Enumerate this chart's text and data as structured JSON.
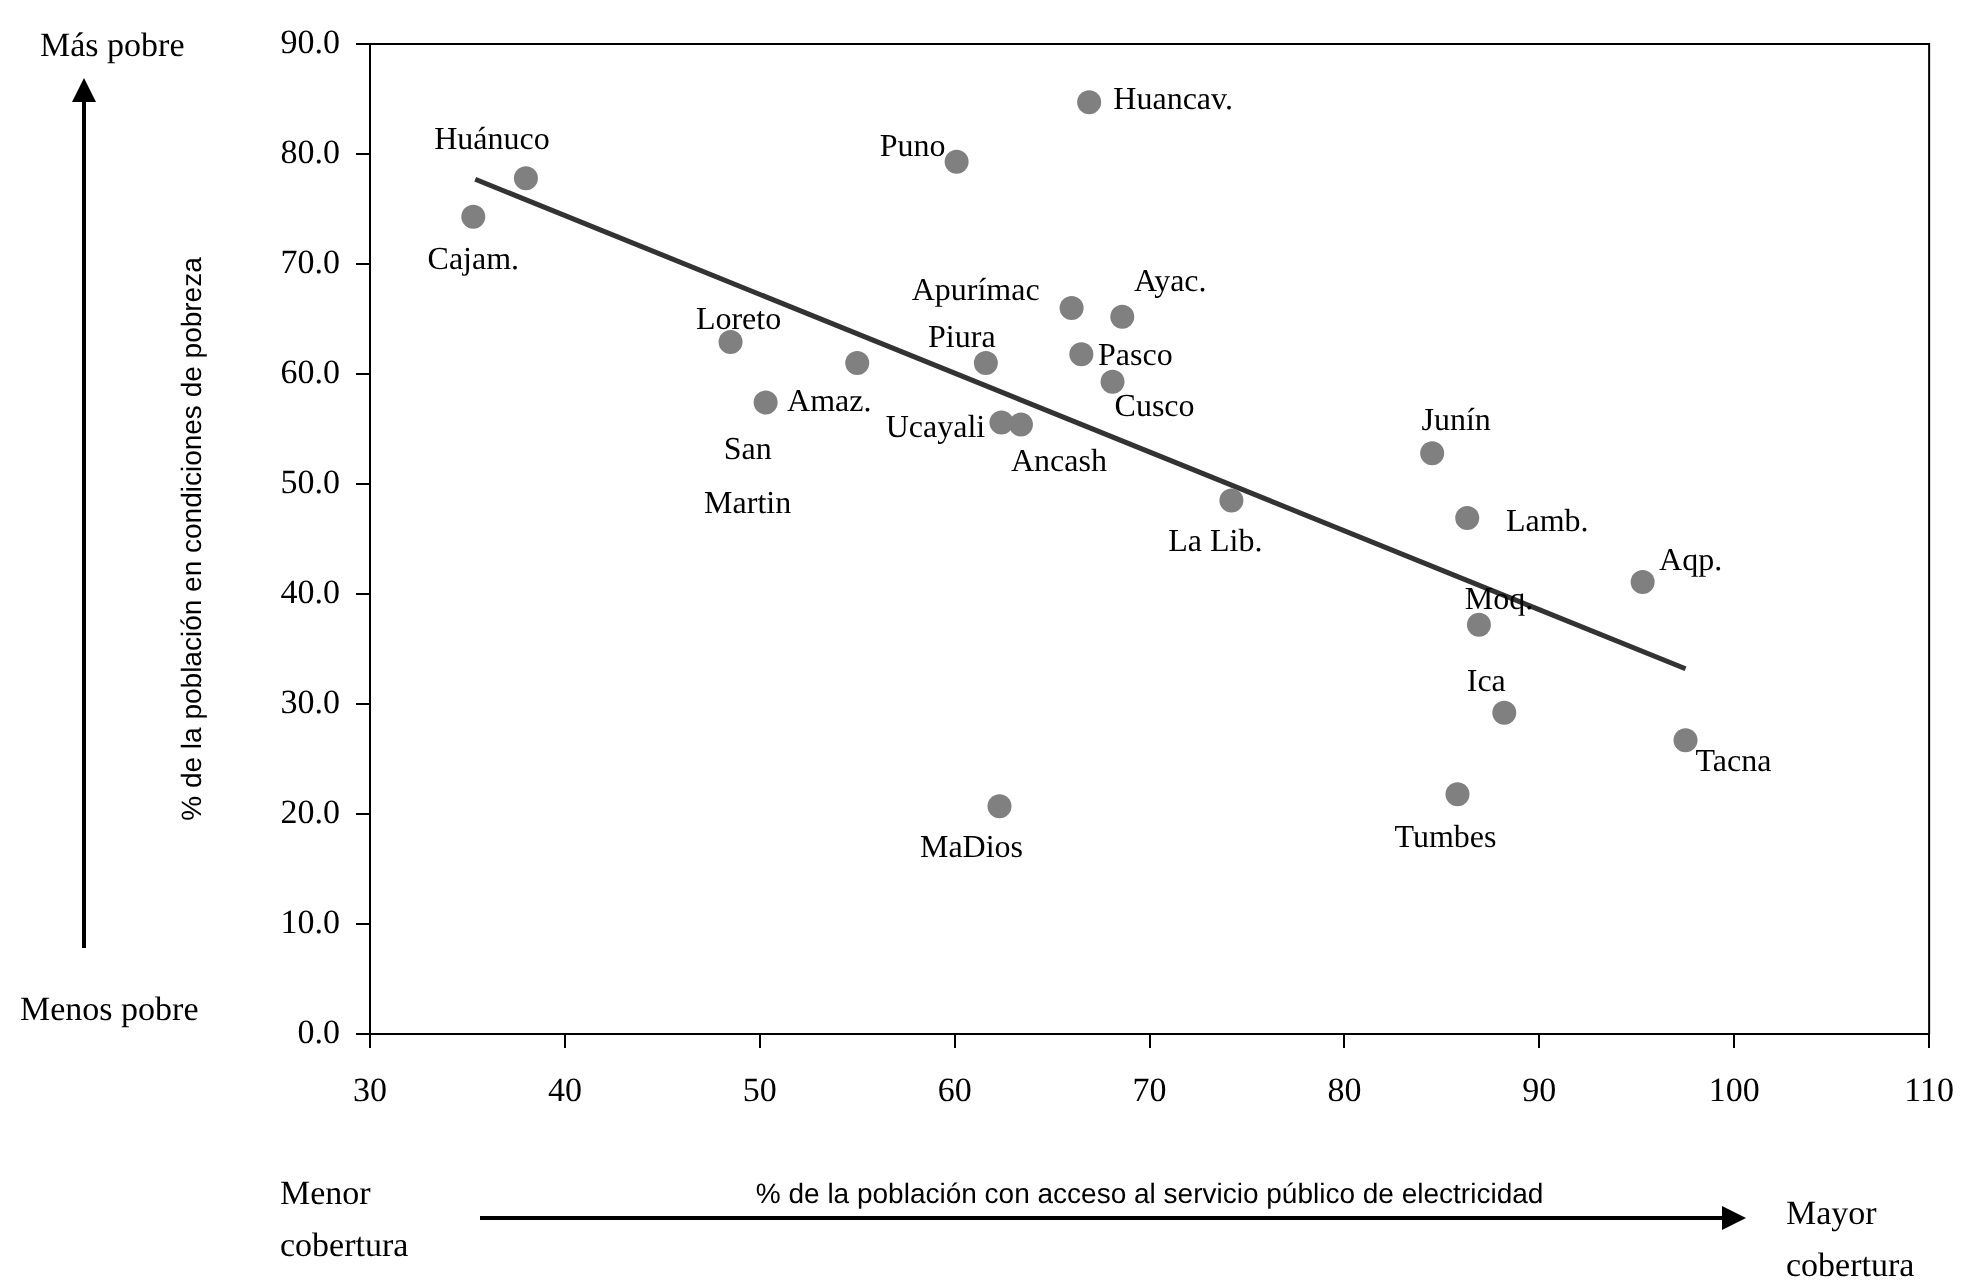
{
  "chart_data": {
    "type": "scatter",
    "xlabel": "% de la población con acceso al servicio público de electricidad",
    "ylabel": "% de la población en condiciones de pobreza",
    "xlim": [
      30,
      110
    ],
    "xticks": [
      30,
      40,
      50,
      60,
      70,
      80,
      90,
      100,
      110
    ],
    "ylim": [
      0,
      90
    ],
    "yticks": [
      {
        "value": 0,
        "label": "0.0"
      },
      {
        "value": 10,
        "label": "10.0"
      },
      {
        "value": 20,
        "label": "20.0"
      },
      {
        "value": 30,
        "label": "30.0"
      },
      {
        "value": 40,
        "label": "40.0"
      },
      {
        "value": 50,
        "label": "50.0"
      },
      {
        "value": 60,
        "label": "60.0"
      },
      {
        "value": 70,
        "label": "70.0"
      },
      {
        "value": 80,
        "label": "80.0"
      },
      {
        "value": 90,
        "label": "90.0"
      }
    ],
    "grid": false,
    "series": [
      {
        "type": "scatter",
        "color": "#808080",
        "marker": "circle",
        "x": [
          35.3,
          38.0,
          60.1,
          66.9,
          48.5,
          55.0,
          50.3,
          61.6,
          62.4,
          63.4,
          66.0,
          68.6,
          66.5,
          68.1,
          74.2,
          62.3,
          84.5,
          86.3,
          95.3,
          86.9,
          88.2,
          97.5,
          85.8
        ],
        "values": [
          74.3,
          77.8,
          79.3,
          84.7,
          62.9,
          61.0,
          57.4,
          61.0,
          55.6,
          55.4,
          66.0,
          65.2,
          61.8,
          59.3,
          48.5,
          20.7,
          52.8,
          46.9,
          41.1,
          37.2,
          29.2,
          26.7,
          21.8
        ]
      },
      {
        "type": "line",
        "color": "#333333",
        "marker": "none",
        "x": [
          35.4,
          97.5
        ],
        "values": [
          77.7,
          33.2
        ]
      }
    ],
    "annotations": [
      "Más pobre",
      "Menos pobre",
      "Menor cobertura",
      "Mayor cobertura",
      {
        "text": "Cajam.",
        "x": 35.3,
        "y": 74.3
      },
      {
        "text": "Huánuco",
        "x": 38.0,
        "y": 77.8
      },
      {
        "text": "Puno",
        "x": 60.1,
        "y": 79.3
      },
      {
        "text": "Huancav.",
        "x": 66.9,
        "y": 84.7
      },
      {
        "text": "Loreto",
        "x": 48.5,
        "y": 62.9
      },
      {
        "text": "Amaz.",
        "x": 55.0,
        "y": 61.0
      },
      {
        "text": "San Martin",
        "x": 50.3,
        "y": 57.4
      },
      {
        "text": "Piura",
        "x": 61.6,
        "y": 61.0
      },
      {
        "text": "Ucayali",
        "x": 62.4,
        "y": 55.6
      },
      {
        "text": "Ancash",
        "x": 63.4,
        "y": 55.4
      },
      {
        "text": "Apurímac",
        "x": 66.0,
        "y": 66.0
      },
      {
        "text": "Ayac.",
        "x": 68.6,
        "y": 65.2
      },
      {
        "text": "Pasco",
        "x": 66.5,
        "y": 61.8
      },
      {
        "text": "Cusco",
        "x": 68.1,
        "y": 59.3
      },
      {
        "text": "La Lib.",
        "x": 74.2,
        "y": 48.5
      },
      {
        "text": "MaDios",
        "x": 62.3,
        "y": 20.7
      },
      {
        "text": "Junín",
        "x": 84.5,
        "y": 52.8
      },
      {
        "text": "Lamb.",
        "x": 86.3,
        "y": 46.9
      },
      {
        "text": "Aqp.",
        "x": 95.3,
        "y": 41.1
      },
      {
        "text": "Moq.",
        "x": 86.9,
        "y": 37.2
      },
      {
        "text": "Ica",
        "x": 88.2,
        "y": 29.2
      },
      {
        "text": "Tacna",
        "x": 97.5,
        "y": 26.7
      },
      {
        "text": "Tumbes",
        "x": 85.8,
        "y": 21.8
      }
    ]
  }
}
